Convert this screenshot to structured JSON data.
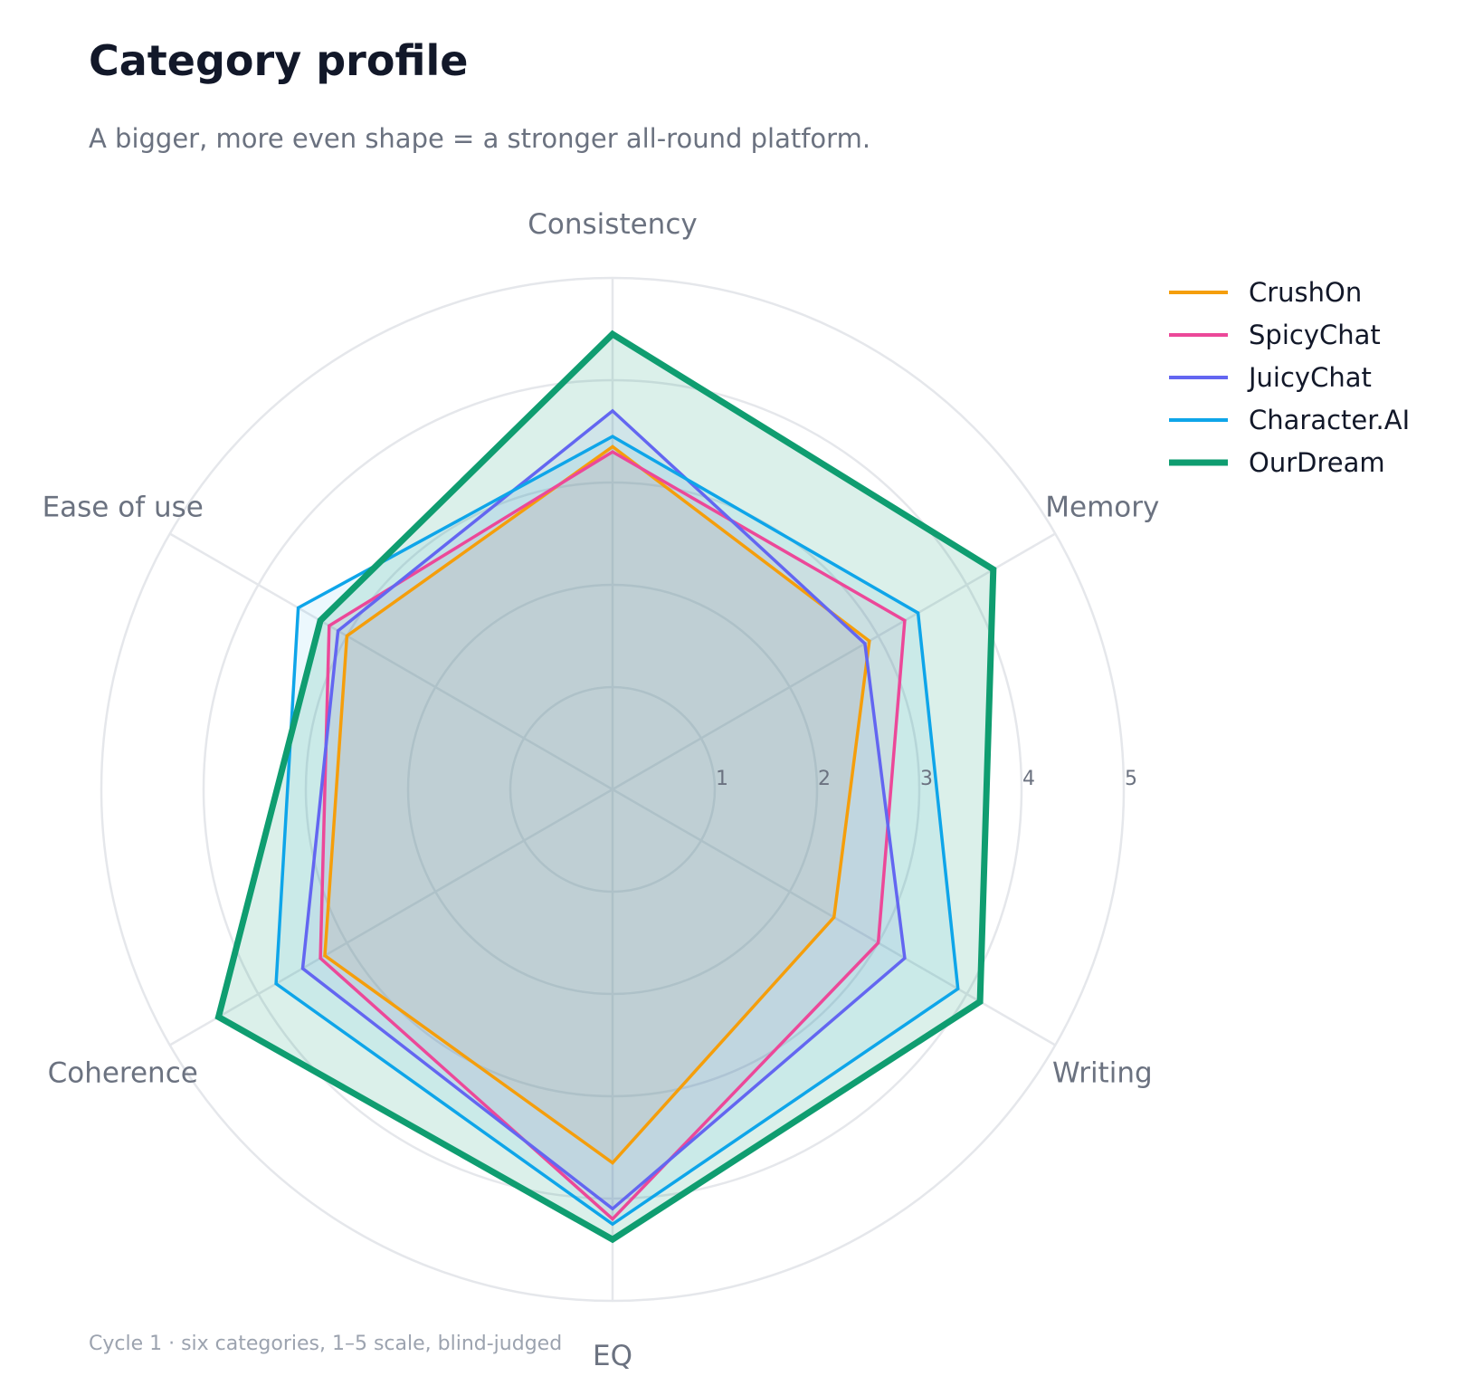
{
  "title": "Category profile",
  "subtitle": "A bigger, more even shape = a stronger all-round platform.",
  "footnote": "Cycle 1  ·  six categories, 1–5 scale, blind-judged",
  "chart_data": {
    "type": "radar",
    "categories": [
      "Consistency",
      "Memory",
      "Writing",
      "EQ",
      "Coherence",
      "Ease of use"
    ],
    "r_ticks": [
      1,
      2,
      3,
      4,
      5
    ],
    "rlim": [
      0,
      5
    ],
    "grid": true,
    "legend_position": "top-right",
    "series": [
      {
        "name": "CrushOn",
        "color": "#f59e0b",
        "values": [
          3.35,
          2.9,
          2.5,
          3.65,
          3.25,
          3.0
        ]
      },
      {
        "name": "SpicyChat",
        "color": "#ec4899",
        "values": [
          3.3,
          3.3,
          3.0,
          4.2,
          3.3,
          3.2
        ]
      },
      {
        "name": "JuicyChat",
        "color": "#6366f1",
        "values": [
          3.7,
          2.85,
          3.3,
          4.1,
          3.5,
          3.1
        ]
      },
      {
        "name": "Character.AI",
        "color": "#0ea5e9",
        "values": [
          3.45,
          3.45,
          3.9,
          4.25,
          3.8,
          3.55
        ]
      },
      {
        "name": "OurDream",
        "color": "#0f9d70",
        "values": [
          4.45,
          4.3,
          4.15,
          4.4,
          4.45,
          3.3
        ]
      }
    ]
  }
}
